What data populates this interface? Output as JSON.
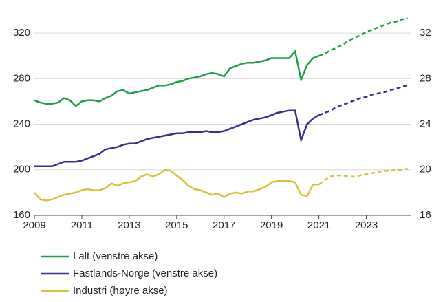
{
  "chart_data": {
    "type": "line",
    "x": [
      2009,
      2009.25,
      2009.5,
      2009.75,
      2010,
      2010.25,
      2010.5,
      2010.75,
      2011,
      2011.25,
      2011.5,
      2011.75,
      2012,
      2012.25,
      2012.5,
      2012.75,
      2013,
      2013.25,
      2013.5,
      2013.75,
      2014,
      2014.25,
      2014.5,
      2014.75,
      2015,
      2015.25,
      2015.5,
      2015.75,
      2016,
      2016.25,
      2016.5,
      2016.75,
      2017,
      2017.25,
      2017.5,
      2017.75,
      2018,
      2018.25,
      2018.5,
      2018.75,
      2019,
      2019.25,
      2019.5,
      2019.75,
      2020,
      2020.25,
      2020.5,
      2020.75,
      2021,
      2021.25,
      2021.5,
      2021.75,
      2022,
      2022.25,
      2022.5,
      2022.75,
      2023,
      2023.25,
      2023.5,
      2023.75,
      2024,
      2024.25,
      2024.5,
      2024.75
    ],
    "series": [
      {
        "name": "I alt (venstre akse)",
        "color": "#1f9e4a",
        "values": [
          261,
          259,
          258,
          258,
          259,
          263,
          261,
          256,
          260,
          261,
          261,
          260,
          263,
          265,
          269,
          270,
          267,
          268,
          269,
          270,
          272,
          274,
          274,
          275,
          277,
          278,
          280,
          281,
          282,
          284,
          285,
          284,
          282,
          289,
          291,
          293,
          294,
          294,
          295,
          296,
          298,
          298,
          298,
          298,
          304,
          279,
          292,
          298,
          300,
          302,
          305,
          307,
          310,
          313,
          316,
          318,
          321,
          323,
          325,
          327,
          329,
          330,
          332,
          333
        ]
      },
      {
        "name": "Fastlands-Norge (venstre akse)",
        "color": "#3b2d8f",
        "values": [
          203,
          203,
          203,
          203,
          205,
          207,
          207,
          207,
          208,
          210,
          212,
          214,
          218,
          219,
          220,
          222,
          223,
          223,
          225,
          227,
          228,
          229,
          230,
          231,
          232,
          232,
          233,
          233,
          233,
          234,
          233,
          233,
          234,
          236,
          238,
          240,
          242,
          244,
          245,
          246,
          248,
          250,
          251,
          252,
          252,
          226,
          240,
          245,
          248,
          250,
          252,
          255,
          257,
          259,
          261,
          263,
          264,
          266,
          267,
          268,
          270,
          271,
          273,
          274
        ]
      },
      {
        "name": "Industri (høyre akse)",
        "color": "#d4c23a",
        "axis": "y2",
        "values": [
          18.0,
          17.4,
          17.3,
          17.4,
          17.6,
          17.8,
          17.9,
          18.0,
          18.2,
          18.3,
          18.2,
          18.2,
          18.4,
          18.8,
          18.6,
          18.8,
          18.9,
          19.0,
          19.4,
          19.6,
          19.4,
          19.6,
          20.0,
          19.9,
          19.5,
          19.1,
          18.6,
          18.3,
          18.2,
          18.0,
          17.8,
          17.9,
          17.6,
          17.9,
          18.0,
          17.9,
          18.1,
          18.1,
          18.3,
          18.5,
          18.9,
          19.0,
          19.0,
          19.0,
          18.9,
          17.8,
          17.7,
          18.7,
          18.7,
          19.1,
          19.4,
          19.5,
          19.5,
          19.4,
          19.4,
          19.5,
          19.6,
          19.7,
          19.8,
          19.9,
          19.9,
          20.0,
          20.0,
          20.1
        ]
      }
    ],
    "dashed_from": 2021,
    "xlim": [
      2009,
      2024.9
    ],
    "xticks": [
      2009,
      2011,
      2013,
      2015,
      2017,
      2019,
      2021,
      2023
    ],
    "ylim": [
      160,
      340
    ],
    "yticks": [
      160,
      200,
      240,
      280,
      320
    ],
    "y2lim": [
      16,
      34
    ],
    "y2ticks": [
      16,
      20,
      24,
      28,
      32
    ],
    "grid": true
  }
}
